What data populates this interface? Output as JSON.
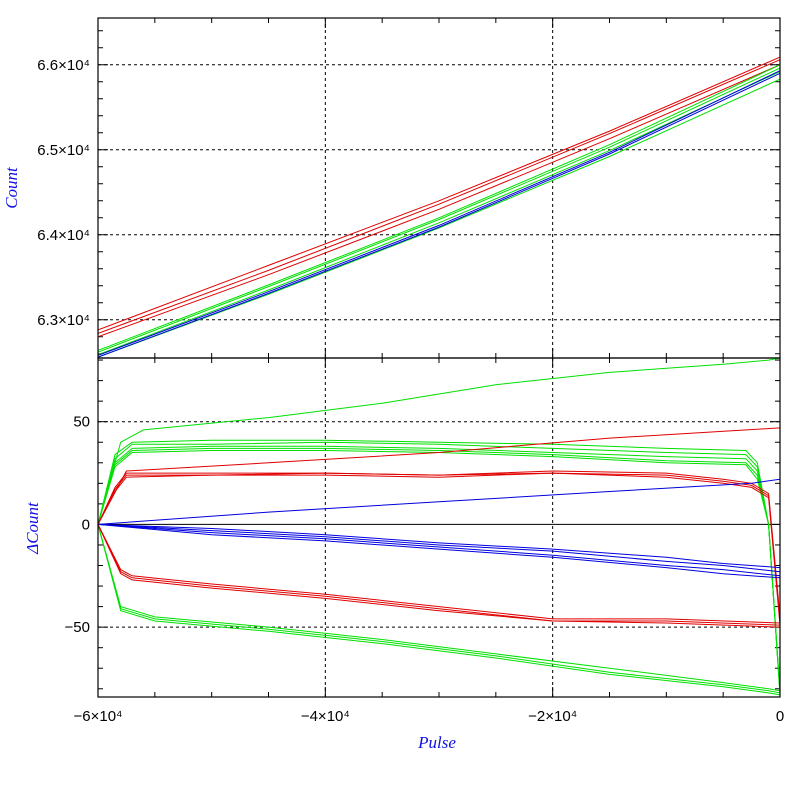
{
  "chart_data": [
    {
      "panel": "top",
      "type": "line",
      "ylabel": "Count",
      "xlim": [
        -60000,
        0
      ],
      "ylim": [
        62550,
        66550
      ],
      "grid": true,
      "ytick_labels": [
        {
          "value": 63000,
          "label": "6.3×10⁴"
        },
        {
          "value": 64000,
          "label": "6.4×10⁴"
        },
        {
          "value": 65000,
          "label": "6.5×10⁴"
        },
        {
          "value": 66000,
          "label": "6.6×10⁴"
        }
      ],
      "series": [
        {
          "color": "#e00000",
          "x": [
            -60000,
            -45000,
            -30000,
            -15000,
            0
          ],
          "y": [
            62840,
            63580,
            64360,
            65190,
            66060
          ]
        },
        {
          "color": "#e00000",
          "x": [
            -60000,
            -45000,
            -30000,
            -15000,
            0
          ],
          "y": [
            62880,
            63640,
            64400,
            65220,
            66090
          ]
        },
        {
          "color": "#e00000",
          "x": [
            -60000,
            -45000,
            -30000,
            -15000,
            0
          ],
          "y": [
            62800,
            63530,
            64300,
            65130,
            66000
          ]
        },
        {
          "color": "#00e000",
          "x": [
            -60000,
            -45000,
            -30000,
            -15000,
            0
          ],
          "y": [
            62620,
            63390,
            64180,
            65030,
            65960
          ]
        },
        {
          "color": "#00e000",
          "x": [
            -60000,
            -45000,
            -30000,
            -15000,
            0
          ],
          "y": [
            62590,
            63350,
            64140,
            64990,
            65920
          ]
        },
        {
          "color": "#00e000",
          "x": [
            -60000,
            -45000,
            -30000,
            -15000,
            0
          ],
          "y": [
            62560,
            63300,
            64080,
            64920,
            65830
          ]
        },
        {
          "color": "#00e000",
          "x": [
            -60000,
            -45000,
            -30000,
            -15000,
            0
          ],
          "y": [
            62640,
            63410,
            64200,
            65060,
            66000
          ]
        },
        {
          "color": "#0000e0",
          "x": [
            -60000,
            -45000,
            -30000,
            -15000,
            0
          ],
          "y": [
            62560,
            63310,
            64090,
            64950,
            65900
          ]
        },
        {
          "color": "#0000e0",
          "x": [
            -60000,
            -45000,
            -30000,
            -15000,
            0
          ],
          "y": [
            62580,
            63330,
            64110,
            64970,
            65930
          ]
        }
      ]
    },
    {
      "panel": "bottom",
      "type": "line",
      "xlabel": "Pulse",
      "ylabel": "ΔCount",
      "xlim": [
        -60000,
        0
      ],
      "ylim": [
        -84,
        81
      ],
      "grid": true,
      "xtick_labels": [
        {
          "value": -60000,
          "label": "−6×10⁴"
        },
        {
          "value": -40000,
          "label": "−4×10⁴"
        },
        {
          "value": -20000,
          "label": "−2×10⁴"
        },
        {
          "value": 0,
          "label": "0"
        }
      ],
      "ytick_labels": [
        {
          "value": -50,
          "label": "−50"
        },
        {
          "value": 0,
          "label": "0"
        },
        {
          "value": 50,
          "label": "50"
        }
      ],
      "zero_line": 0,
      "series": [
        {
          "color": "#00e000",
          "x": [
            -60000,
            -58000,
            -56000,
            -45000,
            -35000,
            -25000,
            -15000,
            -5000,
            -1000,
            0
          ],
          "y": [
            0,
            40,
            46,
            52,
            59,
            68,
            74,
            78,
            80,
            81
          ]
        },
        {
          "color": "#00e000",
          "x": [
            -60000,
            -58500,
            -57000,
            -50000,
            -40000,
            -30000,
            -20000,
            -10000,
            -3000,
            -2000,
            -1000,
            0
          ],
          "y": [
            0,
            34,
            40,
            41,
            41,
            40,
            39,
            37,
            36,
            30,
            0,
            -81
          ]
        },
        {
          "color": "#00e000",
          "x": [
            -60000,
            -58500,
            -57000,
            -50000,
            -40000,
            -30000,
            -20000,
            -10000,
            -3000,
            -2000,
            -1000,
            0
          ],
          "y": [
            0,
            32,
            39,
            39,
            40,
            39,
            37,
            35,
            34,
            28,
            0,
            -82
          ]
        },
        {
          "color": "#00e000",
          "x": [
            -60000,
            -58500,
            -57000,
            -50000,
            -40000,
            -30000,
            -20000,
            -10000,
            -3000,
            -2000,
            -1000,
            0
          ],
          "y": [
            0,
            30,
            37,
            38,
            38,
            37,
            35,
            33,
            32,
            26,
            0,
            -82
          ]
        },
        {
          "color": "#00e000",
          "x": [
            -60000,
            -58500,
            -57000,
            -50000,
            -40000,
            -30000,
            -20000,
            -10000,
            -3000,
            -2000,
            -1000,
            0
          ],
          "y": [
            0,
            29,
            36,
            37,
            37,
            36,
            34,
            31,
            30,
            24,
            0,
            -83
          ]
        },
        {
          "color": "#00e000",
          "x": [
            -60000,
            -58500,
            -57000,
            -50000,
            -40000,
            -30000,
            -20000,
            -10000,
            -3000,
            -2000,
            -1000,
            0
          ],
          "y": [
            0,
            28,
            35,
            36,
            36,
            35,
            33,
            30,
            29,
            22,
            0,
            -83
          ]
        },
        {
          "color": "#00e000",
          "x": [
            -60000,
            -58000,
            -55000,
            -45000,
            -35000,
            -25000,
            -15000,
            -5000,
            -1000,
            0
          ],
          "y": [
            0,
            -40,
            -45,
            -50,
            -56,
            -63,
            -70,
            -77,
            -80,
            -81
          ]
        },
        {
          "color": "#00e000",
          "x": [
            -60000,
            -58000,
            -55000,
            -45000,
            -35000,
            -25000,
            -15000,
            -5000,
            -1000,
            0
          ],
          "y": [
            0,
            -41,
            -46,
            -51,
            -57,
            -64,
            -72,
            -78,
            -81,
            -82
          ]
        },
        {
          "color": "#00e000",
          "x": [
            -60000,
            -58000,
            -55000,
            -45000,
            -35000,
            -25000,
            -15000,
            -5000,
            -1000,
            0
          ],
          "y": [
            0,
            -42,
            -47,
            -52,
            -58,
            -65,
            -73,
            -79,
            -82,
            -83
          ]
        },
        {
          "color": "#e00000",
          "x": [
            -60000,
            -57500,
            -45000,
            -30000,
            -15000,
            0
          ],
          "y": [
            0,
            26,
            30,
            35,
            42,
            47
          ]
        },
        {
          "color": "#e00000",
          "x": [
            -60000,
            -58500,
            -57500,
            -50000,
            -40000,
            -30000,
            -20000,
            -10000,
            -5000,
            -2500,
            -1000,
            0
          ],
          "y": [
            0,
            18,
            25,
            25,
            25,
            24,
            26,
            25,
            22,
            20,
            15,
            -45
          ]
        },
        {
          "color": "#e00000",
          "x": [
            -60000,
            -58500,
            -57500,
            -50000,
            -40000,
            -30000,
            -20000,
            -10000,
            -5000,
            -2500,
            -1000,
            0
          ],
          "y": [
            0,
            17,
            24,
            24,
            25,
            24,
            25,
            24,
            21,
            19,
            14,
            -47
          ]
        },
        {
          "color": "#e00000",
          "x": [
            -60000,
            -58500,
            -57500,
            -50000,
            -40000,
            -30000,
            -20000,
            -10000,
            -5000,
            -2500,
            -1000,
            0
          ],
          "y": [
            0,
            16,
            23,
            24,
            24,
            23,
            25,
            23,
            20,
            18,
            13,
            -49
          ]
        },
        {
          "color": "#e00000",
          "x": [
            -60000,
            -58000,
            -57000,
            -50000,
            -40000,
            -30000,
            -20000,
            -10000,
            0
          ],
          "y": [
            0,
            -22,
            -25,
            -29,
            -34,
            -40,
            -46,
            -46,
            -48
          ]
        },
        {
          "color": "#e00000",
          "x": [
            -60000,
            -58000,
            -57000,
            -50000,
            -40000,
            -30000,
            -20000,
            -10000,
            0
          ],
          "y": [
            0,
            -23,
            -26,
            -30,
            -35,
            -41,
            -47,
            -47,
            -49
          ]
        },
        {
          "color": "#e00000",
          "x": [
            -60000,
            -58000,
            -57000,
            -50000,
            -40000,
            -30000,
            -20000,
            -10000,
            0
          ],
          "y": [
            0,
            -24,
            -27,
            -31,
            -36,
            -42,
            -47,
            -48,
            -50
          ]
        },
        {
          "color": "#0000e0",
          "x": [
            -60000,
            -45000,
            -30000,
            -15000,
            -2500,
            0
          ],
          "y": [
            0,
            6,
            11,
            16,
            20,
            22
          ]
        },
        {
          "color": "#0000e0",
          "x": [
            -60000,
            -50000,
            -40000,
            -30000,
            -20000,
            -10000,
            -5000,
            0
          ],
          "y": [
            0,
            -3,
            -6,
            -10,
            -13,
            -18,
            -20,
            -23
          ]
        },
        {
          "color": "#0000e0",
          "x": [
            -60000,
            -50000,
            -40000,
            -30000,
            -20000,
            -10000,
            -5000,
            0
          ],
          "y": [
            0,
            -4,
            -7,
            -11,
            -15,
            -20,
            -22,
            -25
          ]
        },
        {
          "color": "#0000e0",
          "x": [
            -60000,
            -50000,
            -40000,
            -30000,
            -20000,
            -10000,
            -5000,
            0
          ],
          "y": [
            0,
            -5,
            -8,
            -12,
            -16,
            -21,
            -24,
            -26
          ]
        },
        {
          "color": "#0000e0",
          "x": [
            -60000,
            -50000,
            -40000,
            -30000,
            -20000,
            -10000,
            -5000,
            0
          ],
          "y": [
            0,
            -2,
            -5,
            -9,
            -12,
            -16,
            -19,
            -21
          ]
        }
      ]
    }
  ]
}
